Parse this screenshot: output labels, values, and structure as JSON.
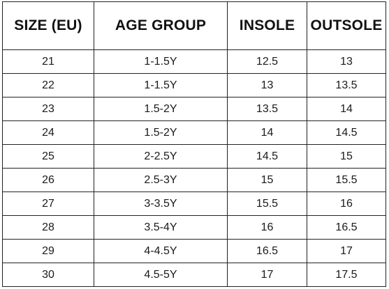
{
  "table": {
    "headers": [
      "SIZE (EU)",
      "AGE GROUP",
      "INSOLE",
      "OUTSOLE"
    ],
    "rows": [
      [
        "21",
        "1-1.5Y",
        "12.5",
        "13"
      ],
      [
        "22",
        "1-1.5Y",
        "13",
        "13.5"
      ],
      [
        "23",
        "1.5-2Y",
        "13.5",
        "14"
      ],
      [
        "24",
        "1.5-2Y",
        "14",
        "14.5"
      ],
      [
        "25",
        "2-2.5Y",
        "14.5",
        "15"
      ],
      [
        "26",
        "2.5-3Y",
        "15",
        "15.5"
      ],
      [
        "27",
        "3-3.5Y",
        "15.5",
        "16"
      ],
      [
        "28",
        "3.5-4Y",
        "16",
        "16.5"
      ],
      [
        "29",
        "4-4.5Y",
        "16.5",
        "17"
      ],
      [
        "30",
        "4.5-5Y",
        "17",
        "17.5"
      ]
    ]
  }
}
